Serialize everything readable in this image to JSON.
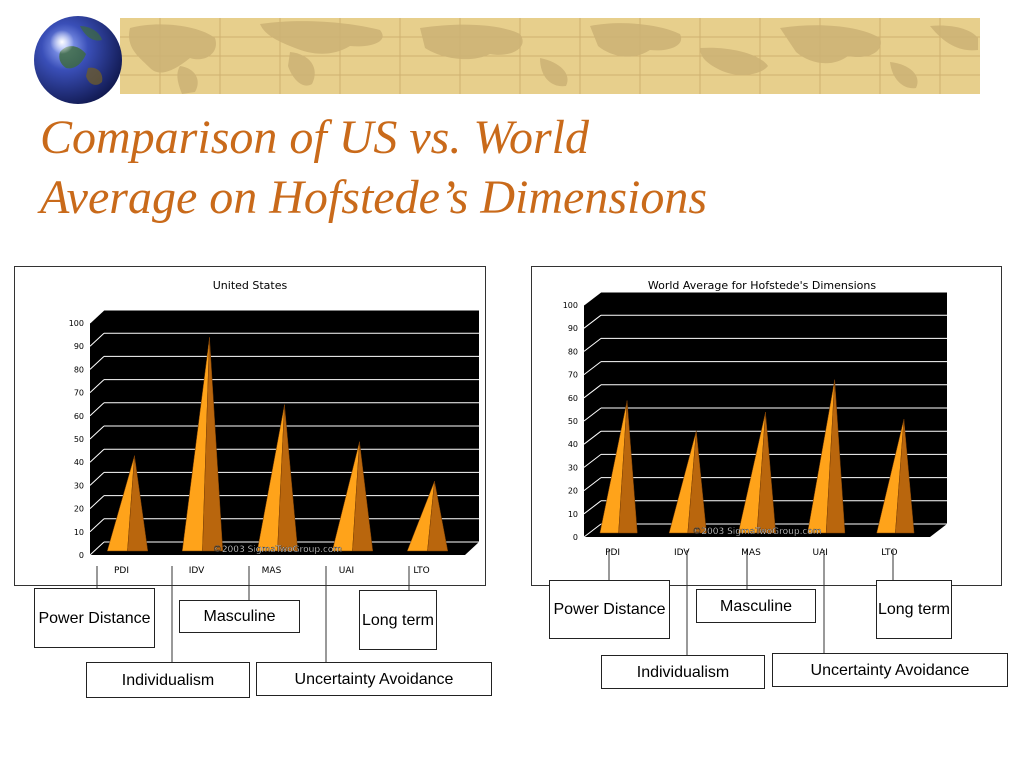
{
  "slide": {
    "title_line1": "Comparison of US vs. World",
    "title_line2": "Average on Hofstede’s Dimensions"
  },
  "theme": {
    "title_color": "#c96a1a",
    "banner_color": "#e7cf8c",
    "pyramid_light": "#ffa31a",
    "pyramid_dark": "#b9660d",
    "plot_background": "#000000"
  },
  "chart_data": [
    {
      "type": "bar",
      "title": "United States",
      "categories": [
        "PDI",
        "IDV",
        "MAS",
        "UAI",
        "LTO"
      ],
      "values": [
        40,
        91,
        62,
        46,
        29
      ],
      "ylim": [
        0,
        100
      ],
      "yticks": [
        0,
        10,
        20,
        30,
        40,
        50,
        60,
        70,
        80,
        90,
        100
      ],
      "watermark": "©2003 SigmaTwoGroup.com",
      "grid": true,
      "legend": "none",
      "mark_shape": "3d-pyramid"
    },
    {
      "type": "bar",
      "title": "World Average for Hofstede's Dimensions",
      "categories": [
        "PDI",
        "IDV",
        "MAS",
        "UAI",
        "LTO"
      ],
      "values": [
        56,
        43,
        51,
        65,
        48
      ],
      "ylim": [
        0,
        100
      ],
      "yticks": [
        0,
        10,
        20,
        30,
        40,
        50,
        60,
        70,
        80,
        90,
        100
      ],
      "watermark": "©2003 SigmaTwoGroup.com",
      "grid": true,
      "legend": "none",
      "mark_shape": "3d-pyramid"
    }
  ],
  "callouts": {
    "us": {
      "pdi": "Power Distance",
      "idv": "Individualism",
      "mas": "Masculine",
      "uai": "Uncertainty Avoidance",
      "lto": "Long term"
    },
    "world": {
      "pdi": "Power Distance",
      "idv": "Individualism",
      "mas": "Masculine",
      "uai": "Uncertainty Avoidance",
      "lto": "Long term"
    }
  }
}
